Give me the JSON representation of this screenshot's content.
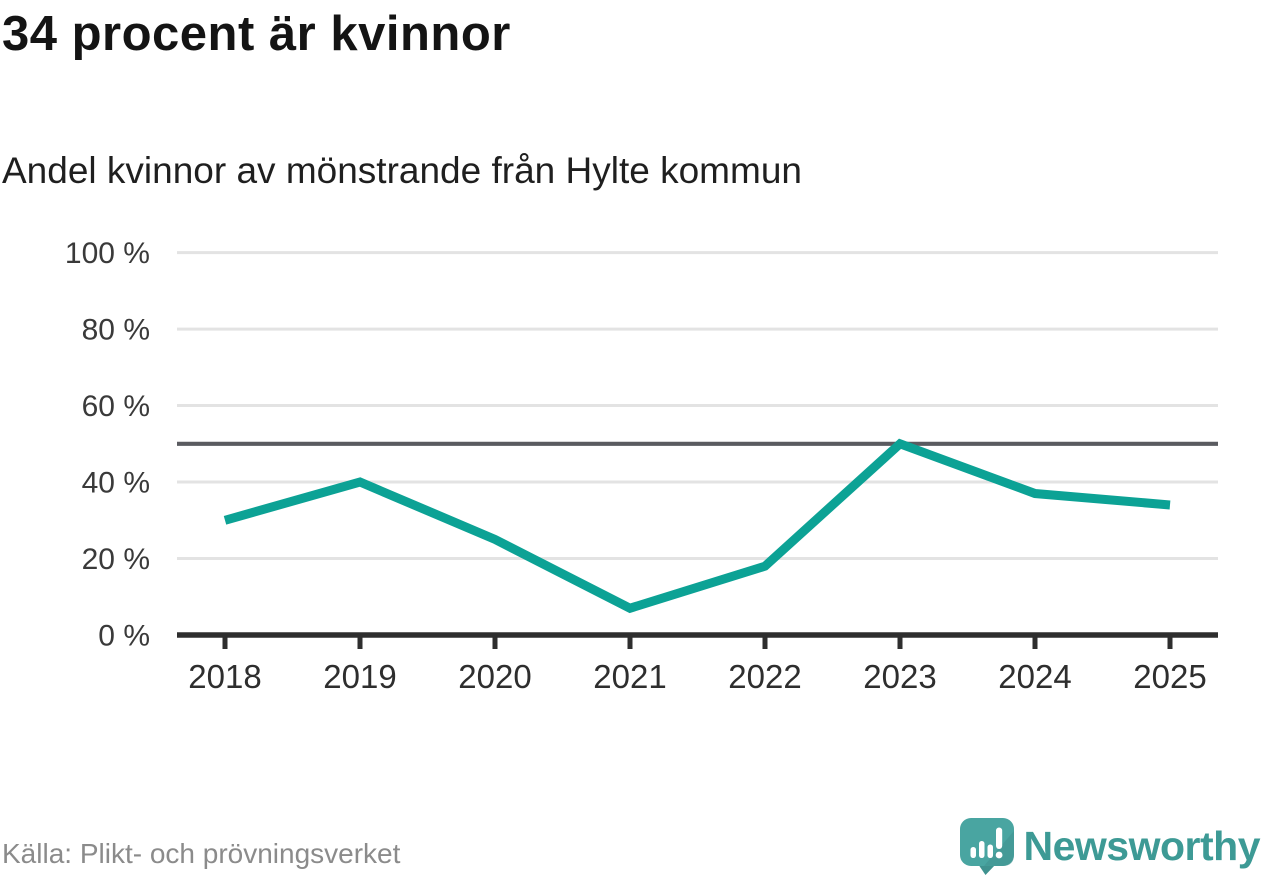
{
  "header": {
    "title": "34 procent är kvinnor",
    "subtitle": "Andel kvinnor av mönstrande från Hylte kommun"
  },
  "chart_data": {
    "type": "line",
    "title": "34 procent är kvinnor",
    "subtitle": "Andel kvinnor av mönstrande från Hylte kommun",
    "categories": [
      "2018",
      "2019",
      "2020",
      "2021",
      "2022",
      "2023",
      "2024",
      "2025"
    ],
    "series": [
      {
        "name": "Andel kvinnor av mönstrande från Hylte kommun",
        "values": [
          30,
          40,
          25,
          7,
          18,
          50,
          37,
          34
        ]
      }
    ],
    "xlabel": "",
    "ylabel": "",
    "ylim": [
      0,
      100
    ],
    "yticks": [
      0,
      20,
      40,
      60,
      80,
      100
    ],
    "ytick_suffix": " %",
    "reference_line_value": 50,
    "grid": true,
    "legend": "none",
    "colors": {
      "line": "#0ca295",
      "reference_line": "#5a5b60",
      "gridline": "#e3e3e3",
      "axis": "#2e2e2e"
    }
  },
  "footer": {
    "source": "Källa: Plikt- och prövningsverket",
    "logo_text": "Newsworthy",
    "logo_text_color": "#3d9a95",
    "logo_icon": "newsworthy-speech-bubble-bar-chart-icon",
    "logo_icon_color": "#49a5a1",
    "logo_icon_shade_color": "#3f928f"
  }
}
